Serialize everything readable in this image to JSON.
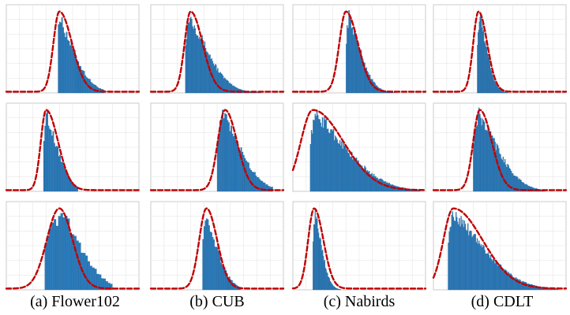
{
  "figure": {
    "captions": [
      "(a) Flower102",
      "(b) CUB",
      "(c) Nabirds",
      "(d) CDLT"
    ],
    "colors": {
      "bar": "#2b7bba",
      "bar_edge": "#1f5f95",
      "curve": "#c00000",
      "grid": "#e6e6e6",
      "frame": "#bfbfbf"
    }
  },
  "chart_data": [
    {
      "type": "bar",
      "title": "",
      "dataset": "Flower102",
      "row": 1,
      "xlim": [
        0,
        10
      ],
      "ylim": [
        0,
        1
      ],
      "fit_curve": {
        "shape": "skew-normal",
        "location": 4.0,
        "scale_left": 0.45,
        "scale_right": 0.95
      },
      "histogram": {
        "start": 3.9,
        "end": 7.4,
        "bins": 40,
        "peak": 3.9,
        "sigma": 1.2,
        "skew": "right"
      }
    },
    {
      "type": "bar",
      "title": "",
      "dataset": "CUB",
      "row": 1,
      "xlim": [
        0,
        10
      ],
      "ylim": [
        0,
        1
      ],
      "fit_curve": {
        "shape": "skew-normal",
        "location": 3.0,
        "scale_left": 0.45,
        "scale_right": 0.9
      },
      "histogram": {
        "start": 2.6,
        "end": 9.8,
        "bins": 110,
        "peak": 2.9,
        "sigma": 1.4,
        "skew": "right"
      }
    },
    {
      "type": "bar",
      "title": "",
      "dataset": "Nabirds",
      "row": 1,
      "xlim": [
        0,
        10
      ],
      "ylim": [
        0,
        1
      ],
      "fit_curve": {
        "shape": "skew-normal",
        "location": 4.0,
        "scale_left": 0.5,
        "scale_right": 0.9
      },
      "histogram": {
        "start": 4.0,
        "end": 8.6,
        "bins": 70,
        "peak": 4.2,
        "sigma": 0.9,
        "skew": "right"
      }
    },
    {
      "type": "bar",
      "title": "",
      "dataset": "CDLT",
      "row": 1,
      "xlim": [
        0,
        10
      ],
      "ylim": [
        0,
        1
      ],
      "fit_curve": {
        "shape": "skew-normal",
        "location": 3.4,
        "scale_left": 0.4,
        "scale_right": 0.65
      },
      "histogram": {
        "start": 3.3,
        "end": 6.1,
        "bins": 60,
        "peak": 3.5,
        "sigma": 0.55,
        "skew": "right"
      }
    },
    {
      "type": "bar",
      "title": "",
      "dataset": "Flower102",
      "row": 2,
      "xlim": [
        0,
        10
      ],
      "ylim": [
        0,
        1
      ],
      "fit_curve": {
        "shape": "skew-normal",
        "location": 3.0,
        "scale_left": 0.4,
        "scale_right": 0.9
      },
      "histogram": {
        "start": 2.8,
        "end": 5.4,
        "bins": 30,
        "peak": 3.0,
        "sigma": 0.9,
        "skew": "right"
      }
    },
    {
      "type": "bar",
      "title": "",
      "dataset": "CUB",
      "row": 2,
      "xlim": [
        0,
        10
      ],
      "ylim": [
        0,
        1
      ],
      "fit_curve": {
        "shape": "skew-normal",
        "location": 5.6,
        "scale_left": 0.55,
        "scale_right": 0.9
      },
      "histogram": {
        "start": 5.0,
        "end": 9.2,
        "bins": 45,
        "peak": 5.4,
        "sigma": 1.4,
        "skew": "right"
      }
    },
    {
      "type": "bar",
      "title": "",
      "dataset": "Nabirds",
      "row": 2,
      "xlim": [
        0,
        10
      ],
      "ylim": [
        0,
        1
      ],
      "fit_curve": {
        "shape": "skew-normal",
        "location": 1.5,
        "scale_left": 0.9,
        "scale_right": 2.3
      },
      "histogram": {
        "start": 1.3,
        "end": 9.6,
        "bins": 120,
        "peak": 1.7,
        "sigma": 2.4,
        "skew": "right"
      }
    },
    {
      "type": "bar",
      "title": "",
      "dataset": "CDLT",
      "row": 2,
      "xlim": [
        0,
        10
      ],
      "ylim": [
        0,
        1
      ],
      "fit_curve": {
        "shape": "skew-normal",
        "location": 3.5,
        "scale_left": 0.5,
        "scale_right": 0.9
      },
      "histogram": {
        "start": 3.0,
        "end": 8.4,
        "bins": 80,
        "peak": 3.4,
        "sigma": 1.5,
        "skew": "right"
      }
    },
    {
      "type": "bar",
      "title": "",
      "dataset": "Flower102",
      "row": 3,
      "xlim": [
        0,
        10
      ],
      "ylim": [
        0,
        1
      ],
      "fit_curve": {
        "shape": "skew-normal",
        "location": 4.0,
        "scale_left": 0.95,
        "scale_right": 1.0
      },
      "histogram": {
        "start": 2.9,
        "end": 8.0,
        "bins": 30,
        "peak": 4.2,
        "sigma": 1.5,
        "skew": "right"
      }
    },
    {
      "type": "bar",
      "title": "",
      "dataset": "CUB",
      "row": 3,
      "xlim": [
        0,
        10
      ],
      "ylim": [
        0,
        1
      ],
      "fit_curve": {
        "shape": "skew-normal",
        "location": 4.2,
        "scale_left": 0.55,
        "scale_right": 0.8
      },
      "histogram": {
        "start": 3.9,
        "end": 6.8,
        "bins": 32,
        "peak": 4.1,
        "sigma": 0.9,
        "skew": "right"
      }
    },
    {
      "type": "bar",
      "title": "",
      "dataset": "Nabirds",
      "row": 3,
      "xlim": [
        0,
        10
      ],
      "ylim": [
        0,
        1
      ],
      "fit_curve": {
        "shape": "skew-normal",
        "location": 1.6,
        "scale_left": 0.45,
        "scale_right": 0.7
      },
      "histogram": {
        "start": 1.5,
        "end": 4.6,
        "bins": 60,
        "peak": 1.7,
        "sigma": 0.5,
        "skew": "right"
      }
    },
    {
      "type": "bar",
      "title": "",
      "dataset": "CDLT",
      "row": 3,
      "xlim": [
        0,
        10
      ],
      "ylim": [
        0,
        1
      ],
      "fit_curve": {
        "shape": "skew-normal",
        "location": 1.5,
        "scale_left": 0.75,
        "scale_right": 2.2
      },
      "histogram": {
        "start": 1.1,
        "end": 9.4,
        "bins": 130,
        "peak": 1.5,
        "sigma": 2.3,
        "skew": "right"
      }
    }
  ]
}
